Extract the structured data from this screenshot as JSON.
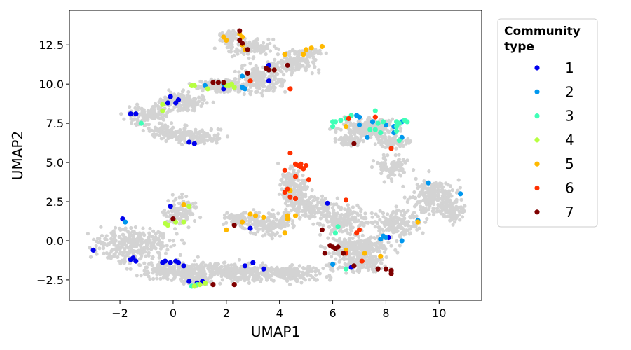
{
  "chart_data": {
    "type": "scatter",
    "title": "",
    "xlabel": "UMAP1",
    "ylabel": "UMAP2",
    "xlim": [
      -3.9,
      11.6
    ],
    "ylim": [
      -3.8,
      14.7
    ],
    "xticks": [
      -2,
      0,
      2,
      4,
      6,
      8,
      10
    ],
    "yticks": [
      -2.5,
      0.0,
      2.5,
      5.0,
      7.5,
      10.0,
      12.5
    ],
    "xtick_labels": [
      "−2",
      "0",
      "2",
      "4",
      "6",
      "8",
      "10"
    ],
    "ytick_labels": [
      "−2.5",
      "0.0",
      "2.5",
      "5.0",
      "7.5",
      "10.0",
      "12.5"
    ],
    "grid": false,
    "background_color": "#d3d3d3",
    "legend": {
      "title_lines": [
        "Community",
        "type"
      ],
      "position": "outside-right",
      "entries": [
        {
          "label": "1",
          "color": "#0000ee"
        },
        {
          "label": "2",
          "color": "#0097ee"
        },
        {
          "label": "3",
          "color": "#40ffb7"
        },
        {
          "label": "4",
          "color": "#b7ff40"
        },
        {
          "label": "5",
          "color": "#ffb900"
        },
        {
          "label": "6",
          "color": "#ff3000"
        },
        {
          "label": "7",
          "color": "#7f0000"
        }
      ]
    },
    "series": [
      {
        "name": "1",
        "color": "#0000ee",
        "points": [
          [
            -3.0,
            -0.6
          ],
          [
            -1.6,
            8.1
          ],
          [
            -1.4,
            8.1
          ],
          [
            -1.9,
            1.4
          ],
          [
            -1.6,
            -1.2
          ],
          [
            -1.4,
            -1.3
          ],
          [
            -1.5,
            -1.1
          ],
          [
            -0.4,
            -1.4
          ],
          [
            -0.3,
            -1.3
          ],
          [
            -0.1,
            -1.4
          ],
          [
            0.1,
            -1.3
          ],
          [
            0.2,
            -1.4
          ],
          [
            0.4,
            -1.6
          ],
          [
            0.6,
            -2.6
          ],
          [
            0.9,
            -2.7
          ],
          [
            1.1,
            -2.6
          ],
          [
            -0.1,
            9.2
          ],
          [
            0.1,
            8.8
          ],
          [
            0.2,
            9.0
          ],
          [
            -0.2,
            8.8
          ],
          [
            0.6,
            6.3
          ],
          [
            0.8,
            6.2
          ],
          [
            -0.1,
            2.2
          ],
          [
            2.9,
            0.8
          ],
          [
            1.9,
            9.7
          ],
          [
            2.7,
            -1.6
          ],
          [
            3.0,
            -1.4
          ],
          [
            3.4,
            -1.8
          ],
          [
            3.6,
            10.2
          ],
          [
            3.6,
            11.2
          ],
          [
            5.8,
            2.4
          ],
          [
            6.7,
            -1.7
          ],
          [
            8.1,
            0.2
          ]
        ]
      },
      {
        "name": "2",
        "color": "#0097ee",
        "points": [
          [
            -1.8,
            1.2
          ],
          [
            1.2,
            9.9
          ],
          [
            1.9,
            10.0
          ],
          [
            2.6,
            10.5
          ],
          [
            2.6,
            9.8
          ],
          [
            2.7,
            9.7
          ],
          [
            3.6,
            10.9
          ],
          [
            6.9,
            8.0
          ],
          [
            7.0,
            7.9
          ],
          [
            7.5,
            7.6
          ],
          [
            8.0,
            7.4
          ],
          [
            8.3,
            7.3
          ],
          [
            8.6,
            7.6
          ],
          [
            8.6,
            6.6
          ],
          [
            8.3,
            6.9
          ],
          [
            7.3,
            6.6
          ],
          [
            9.6,
            3.7
          ],
          [
            10.8,
            3.0
          ],
          [
            9.2,
            1.3
          ],
          [
            6.0,
            -1.5
          ],
          [
            7.8,
            0.1
          ],
          [
            7.9,
            0.3
          ],
          [
            8.0,
            0.2
          ],
          [
            8.6,
            0.0
          ],
          [
            7.0,
            7.4
          ]
        ]
      },
      {
        "name": "3",
        "color": "#40ffb7",
        "points": [
          [
            -1.2,
            7.5
          ],
          [
            6.0,
            7.3
          ],
          [
            6.1,
            7.6
          ],
          [
            6.3,
            7.7
          ],
          [
            6.5,
            7.8
          ],
          [
            6.0,
            7.6
          ],
          [
            6.7,
            8.0
          ],
          [
            7.6,
            8.3
          ],
          [
            7.7,
            7.5
          ],
          [
            7.9,
            7.6
          ],
          [
            7.6,
            7.1
          ],
          [
            7.8,
            6.9
          ],
          [
            8.4,
            7.6
          ],
          [
            8.5,
            7.5
          ],
          [
            8.4,
            7.3
          ],
          [
            8.4,
            7.0
          ],
          [
            8.7,
            7.7
          ],
          [
            8.8,
            7.6
          ],
          [
            8.5,
            6.4
          ],
          [
            7.4,
            7.1
          ],
          [
            6.2,
            0.9
          ],
          [
            6.1,
            0.5
          ],
          [
            6.5,
            -1.8
          ],
          [
            0.7,
            -2.9
          ],
          [
            0.9,
            -2.8
          ]
        ]
      },
      {
        "name": "4",
        "color": "#b7ff40",
        "points": [
          [
            -0.4,
            8.7
          ],
          [
            -0.4,
            8.3
          ],
          [
            0.7,
            9.9
          ],
          [
            0.8,
            9.9
          ],
          [
            2.1,
            9.9
          ],
          [
            2.2,
            10.0
          ],
          [
            2.0,
            9.9
          ],
          [
            2.3,
            9.8
          ],
          [
            1.0,
            -2.8
          ],
          [
            1.2,
            -2.7
          ],
          [
            0.8,
            -2.9
          ],
          [
            -0.3,
            1.1
          ],
          [
            0.1,
            1.2
          ],
          [
            0.4,
            1.2
          ],
          [
            0.6,
            2.2
          ],
          [
            -0.2,
            1.0
          ],
          [
            1.3,
            9.7
          ]
        ]
      },
      {
        "name": "5",
        "color": "#ffb900",
        "points": [
          [
            1.9,
            13.0
          ],
          [
            2.0,
            12.8
          ],
          [
            2.5,
            13.2
          ],
          [
            2.6,
            12.5
          ],
          [
            2.7,
            12.2
          ],
          [
            2.6,
            13.0
          ],
          [
            4.2,
            11.9
          ],
          [
            4.9,
            11.9
          ],
          [
            5.0,
            12.2
          ],
          [
            5.2,
            12.3
          ],
          [
            5.6,
            12.4
          ],
          [
            3.8,
            10.9
          ],
          [
            0.4,
            2.3
          ],
          [
            2.0,
            0.7
          ],
          [
            2.6,
            1.2
          ],
          [
            2.9,
            1.7
          ],
          [
            3.1,
            1.6
          ],
          [
            3.4,
            1.5
          ],
          [
            4.2,
            0.5
          ],
          [
            4.3,
            1.4
          ],
          [
            4.3,
            1.6
          ],
          [
            4.6,
            1.6
          ],
          [
            4.4,
            3.2
          ],
          [
            9.2,
            1.2
          ],
          [
            6.4,
            -0.8
          ],
          [
            6.5,
            -0.6
          ],
          [
            7.2,
            -0.8
          ],
          [
            7.8,
            -1.0
          ],
          [
            6.5,
            7.3
          ]
        ]
      },
      {
        "name": "6",
        "color": "#ff3000",
        "points": [
          [
            2.9,
            10.2
          ],
          [
            4.4,
            9.7
          ],
          [
            4.4,
            5.6
          ],
          [
            4.6,
            4.9
          ],
          [
            4.7,
            4.8
          ],
          [
            4.8,
            4.7
          ],
          [
            5.0,
            4.8
          ],
          [
            4.8,
            4.9
          ],
          [
            4.9,
            4.6
          ],
          [
            4.2,
            4.5
          ],
          [
            4.6,
            4.1
          ],
          [
            5.1,
            3.9
          ],
          [
            4.3,
            3.3
          ],
          [
            4.2,
            3.1
          ],
          [
            4.4,
            2.8
          ],
          [
            4.6,
            2.7
          ],
          [
            6.5,
            2.6
          ],
          [
            6.9,
            0.5
          ],
          [
            7.0,
            0.7
          ],
          [
            8.2,
            5.9
          ],
          [
            6.6,
            7.8
          ],
          [
            7.6,
            7.9
          ],
          [
            6.5,
            -0.8
          ],
          [
            7.1,
            -1.3
          ]
        ]
      },
      {
        "name": "7",
        "color": "#7f0000",
        "points": [
          [
            2.5,
            13.4
          ],
          [
            2.5,
            12.8
          ],
          [
            2.6,
            12.6
          ],
          [
            2.8,
            12.2
          ],
          [
            2.8,
            10.7
          ],
          [
            1.5,
            10.1
          ],
          [
            1.7,
            10.1
          ],
          [
            1.9,
            10.1
          ],
          [
            3.5,
            11.0
          ],
          [
            3.6,
            10.9
          ],
          [
            3.8,
            10.9
          ],
          [
            4.3,
            11.2
          ],
          [
            6.8,
            6.2
          ],
          [
            0.0,
            1.4
          ],
          [
            1.5,
            -2.8
          ],
          [
            2.3,
            -2.8
          ],
          [
            2.3,
            1.0
          ],
          [
            5.6,
            0.7
          ],
          [
            5.7,
            -0.8
          ],
          [
            5.9,
            -0.3
          ],
          [
            6.1,
            -0.5
          ],
          [
            6.2,
            -0.4
          ],
          [
            6.0,
            -0.4
          ],
          [
            6.4,
            -0.8
          ],
          [
            6.8,
            -1.6
          ],
          [
            7.7,
            -1.8
          ],
          [
            8.0,
            -1.8
          ],
          [
            8.2,
            -2.1
          ],
          [
            8.2,
            -1.9
          ]
        ]
      }
    ]
  }
}
